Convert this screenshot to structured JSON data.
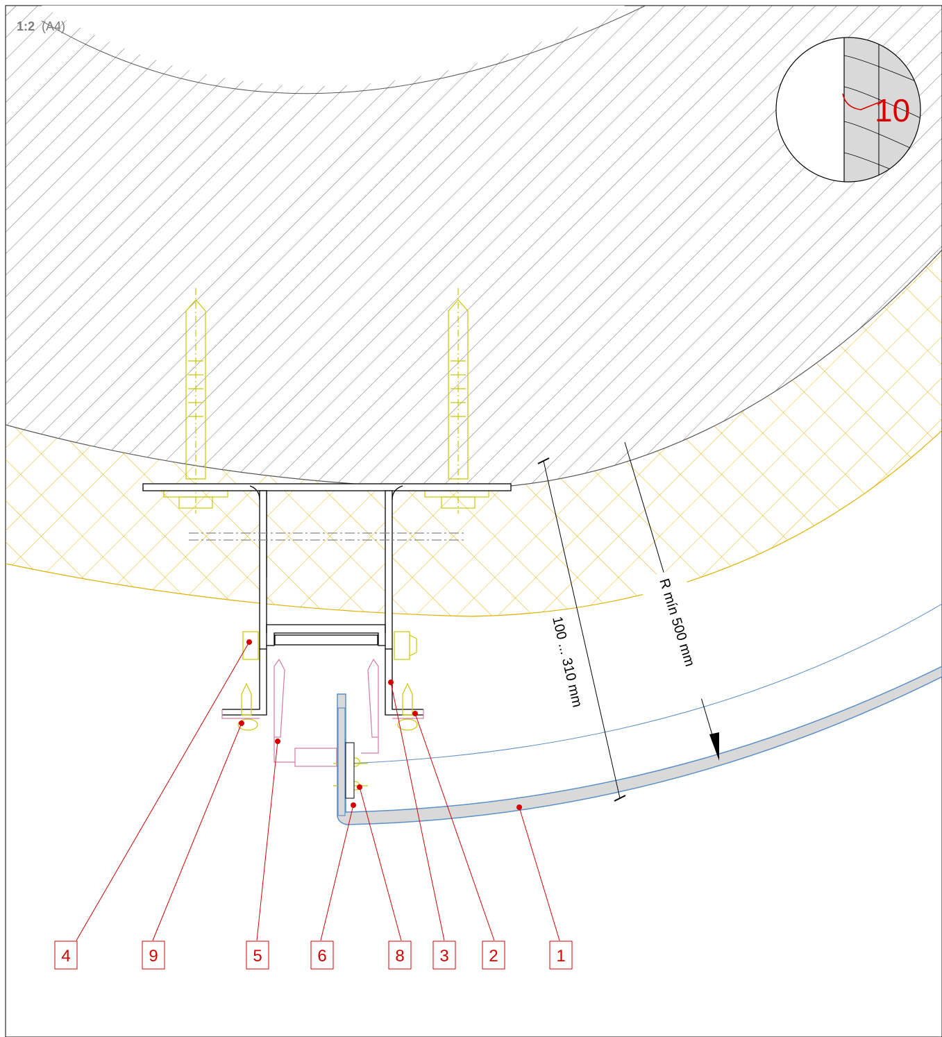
{
  "scale": {
    "ratio": "1:2",
    "paper": "(A4)"
  },
  "dimensions": {
    "thickness": "100 ... 310 mm",
    "radius": "R mín 500 mm"
  },
  "detail": {
    "number": "10"
  },
  "callouts": [
    "4",
    "9",
    "5",
    "6",
    "8",
    "3",
    "2",
    "1"
  ],
  "colors": {
    "wall_hatch": "#4a4a4a",
    "insulation": "#e0b000",
    "anchors": "#c8c800",
    "callout": "#d40000",
    "bracket_pink": "#d27aa8",
    "panel_blue": "#5b8fc7",
    "panel_fill": "#d9d9d9"
  }
}
